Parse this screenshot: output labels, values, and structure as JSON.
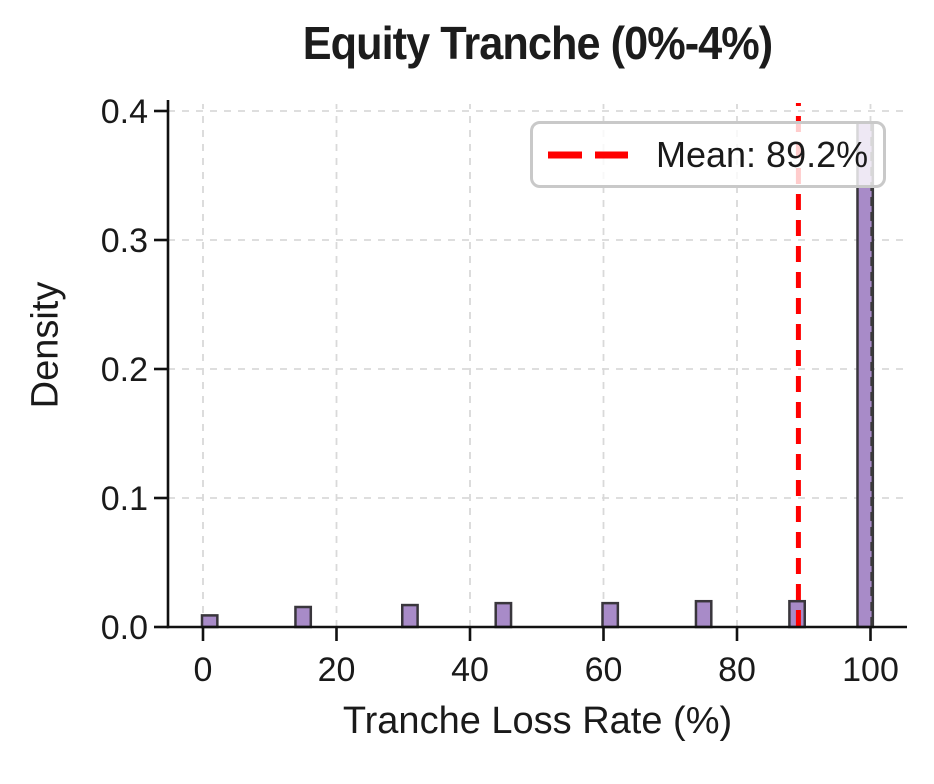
{
  "colors": {
    "bar_fill": "#a88bc8",
    "bar_edge": "#39363c",
    "mean_line": "#ff0000",
    "secondary_line": "#3a3a3a",
    "grid": "#d9d9d9",
    "axis": "#111111",
    "text": "#1a1a1a",
    "legend_border": "#c9c9c9"
  },
  "chart_data": {
    "type": "bar",
    "subtype": "histogram",
    "title": "Equity Tranche (0%-4%)",
    "xlabel": "Tranche Loss Rate (%)",
    "ylabel": "Density",
    "xlim": [
      -5.2,
      105.5
    ],
    "ylim": [
      0,
      0.41
    ],
    "x_ticks": [
      0,
      20,
      40,
      60,
      80,
      100
    ],
    "x_tick_labels": [
      "0",
      "20",
      "40",
      "60",
      "80",
      "100"
    ],
    "y_ticks": [
      0,
      0.1,
      0.2,
      0.3,
      0.4
    ],
    "y_tick_labels": [
      "0.0",
      "0.1",
      "0.2",
      "0.3",
      "0.4"
    ],
    "grid": true,
    "legend_position": "upper right",
    "bar_width_pct": 2.3,
    "bars": [
      {
        "x": 1.0,
        "density": 0.009
      },
      {
        "x": 15.0,
        "density": 0.0155
      },
      {
        "x": 31.0,
        "density": 0.017
      },
      {
        "x": 45.0,
        "density": 0.0185
      },
      {
        "x": 61.0,
        "density": 0.0185
      },
      {
        "x": 75.0,
        "density": 0.02
      },
      {
        "x": 89.0,
        "density": 0.02
      },
      {
        "x": 99.2,
        "density": 0.391
      }
    ],
    "mean_line": {
      "x": 89.2,
      "label": "Mean: 89.2%",
      "style": "dashed"
    },
    "secondary_line": {
      "x": 100.2,
      "style": "dashed"
    }
  }
}
